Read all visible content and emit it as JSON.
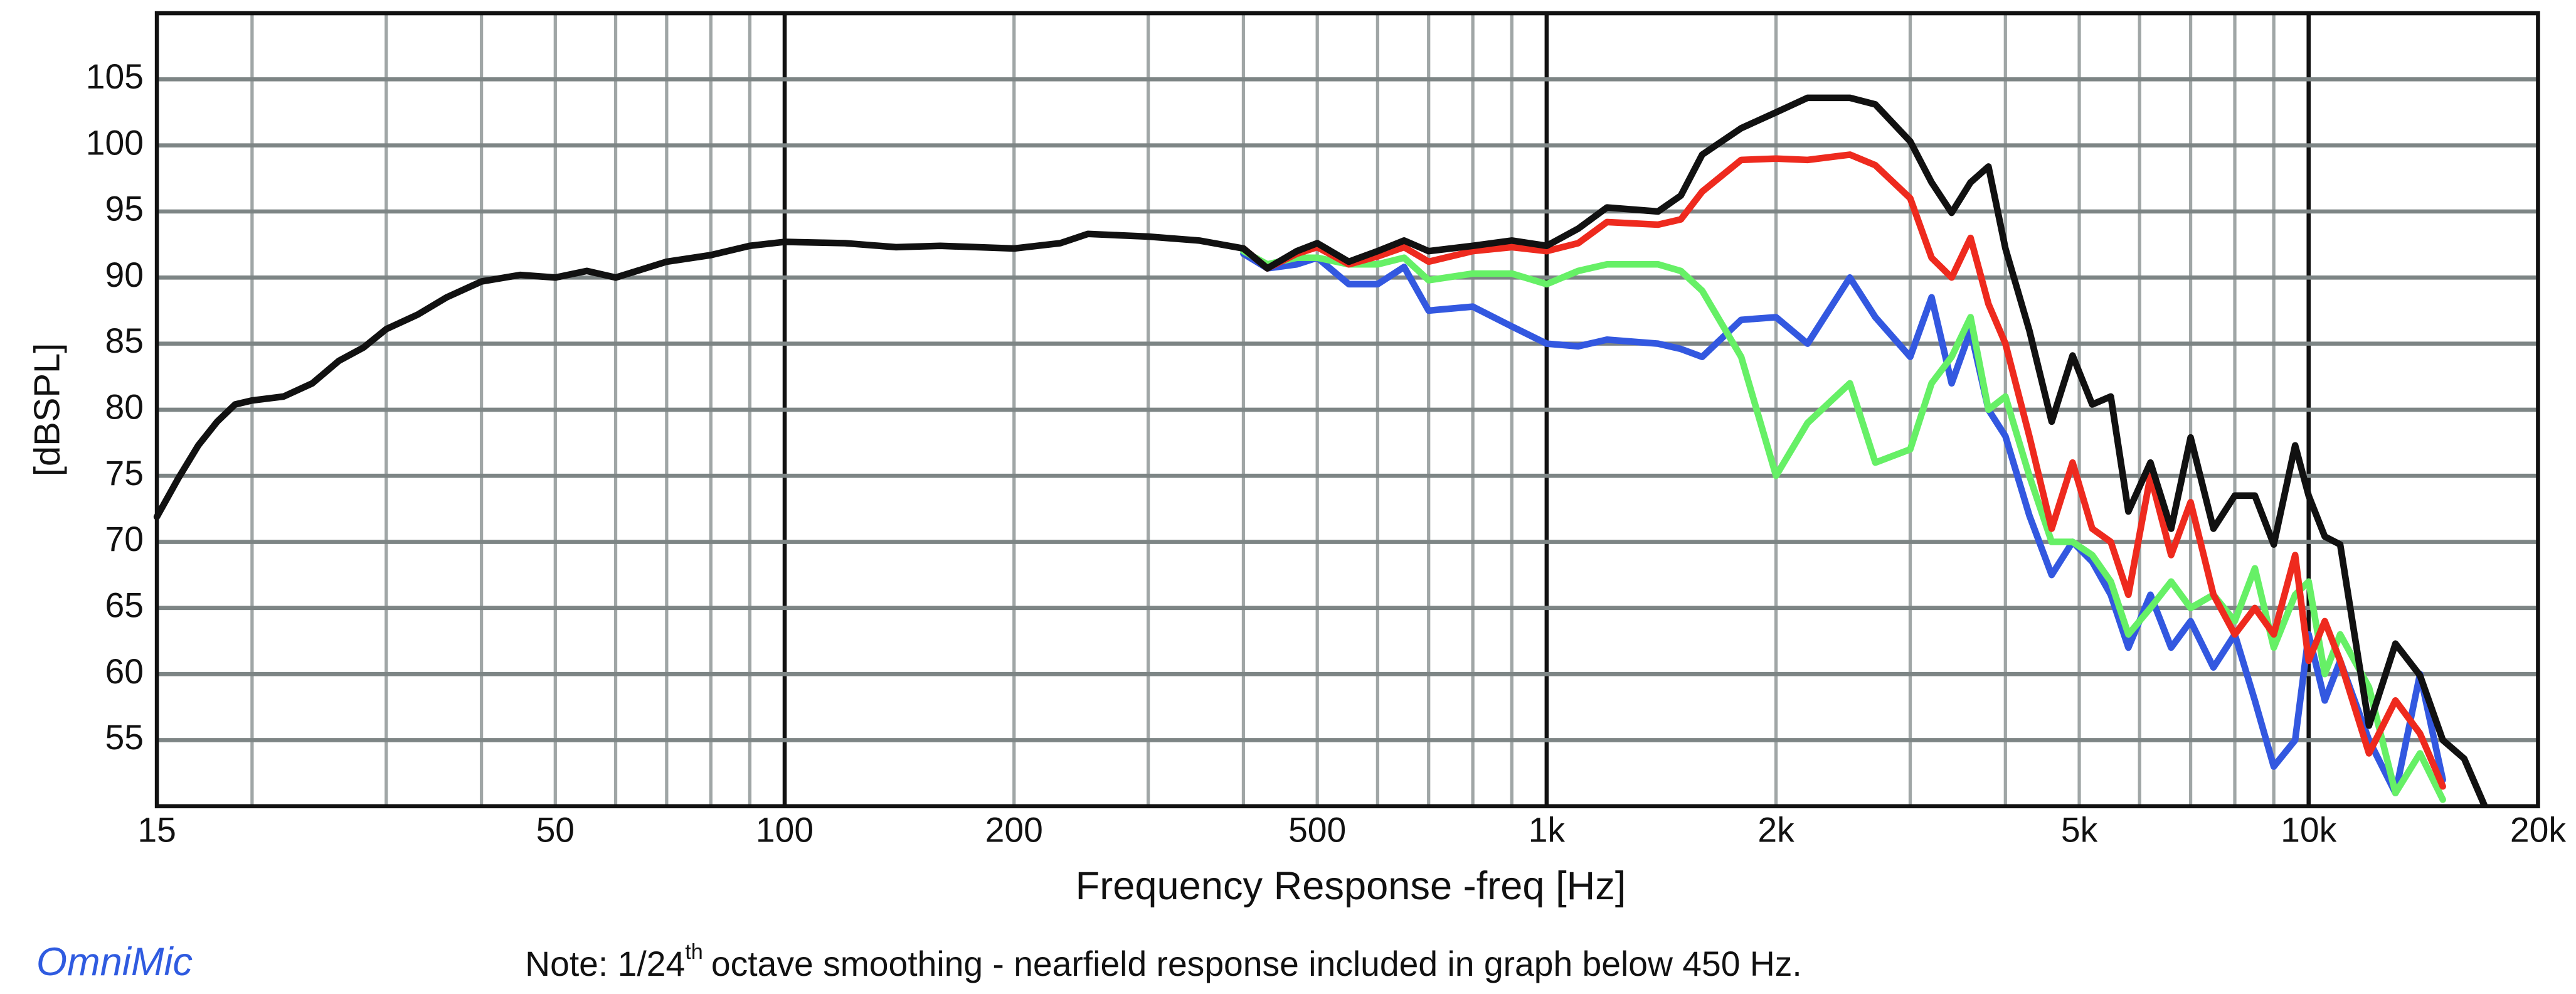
{
  "chart_data": {
    "type": "line",
    "y_label": "[dBSPL]",
    "x_label": "Frequency Response -freq [Hz]",
    "brand": "OmniMic",
    "note": {
      "before": "Note: 1/24",
      "sup": "th",
      "after": "octave smoothing - nearfield response included in graph below 450 Hz."
    },
    "xscale": "log",
    "grid": true,
    "xlim": [
      15,
      20000
    ],
    "ylim": [
      50,
      110
    ],
    "yticks": [
      55,
      60,
      65,
      70,
      75,
      80,
      85,
      90,
      95,
      100,
      105
    ],
    "xticks": [
      15,
      50,
      100,
      200,
      500,
      {
        "value": 1000,
        "label": "1k"
      },
      {
        "value": 2000,
        "label": "2k"
      },
      {
        "value": 5000,
        "label": "5k"
      },
      {
        "value": 10000,
        "label": "10k"
      },
      {
        "value": 20000,
        "label": "20k"
      }
    ],
    "xgrid": [
      20,
      30,
      40,
      50,
      60,
      70,
      80,
      90,
      100,
      200,
      300,
      400,
      500,
      600,
      700,
      800,
      900,
      1000,
      2000,
      3000,
      4000,
      5000,
      6000,
      7000,
      8000,
      9000,
      10000
    ],
    "x": [
      15,
      16,
      17,
      18,
      19,
      20,
      22,
      24,
      26,
      28,
      30,
      33,
      36,
      40,
      45,
      50,
      55,
      60,
      70,
      80,
      90,
      100,
      120,
      140,
      160,
      200,
      230,
      250,
      300,
      350,
      400,
      430,
      470,
      500,
      550,
      600,
      650,
      700,
      800,
      900,
      1000,
      1100,
      1200,
      1400,
      1500,
      1600,
      1800,
      2000,
      2200,
      2500,
      2700,
      3000,
      3200,
      3400,
      3600,
      3800,
      4000,
      4300,
      4600,
      4900,
      5200,
      5500,
      5800,
      6200,
      6600,
      7000,
      7500,
      8000,
      8500,
      9000,
      9600,
      10000,
      10500,
      11000,
      12000,
      13000,
      14000,
      15000,
      16000,
      17000
    ],
    "series": [
      {
        "color": "#3358e0",
        "values": [
          null,
          null,
          null,
          null,
          null,
          null,
          null,
          null,
          null,
          null,
          null,
          null,
          null,
          null,
          null,
          null,
          null,
          null,
          null,
          null,
          null,
          null,
          null,
          null,
          null,
          null,
          null,
          null,
          null,
          null,
          91.8,
          90.7,
          91,
          91.5,
          89.5,
          89.5,
          90.8,
          87.5,
          87.8,
          86.3,
          85,
          84.8,
          85.3,
          85,
          84.6,
          84,
          86.8,
          87,
          85,
          90,
          87,
          84,
          88.5,
          82,
          86,
          80,
          78,
          72,
          67.5,
          70,
          68.5,
          66,
          62,
          66,
          62,
          64,
          60.5,
          63,
          58,
          53,
          55,
          63,
          58,
          61,
          55,
          51,
          60,
          52,
          null,
          null
        ]
      },
      {
        "color": "#66f066",
        "values": [
          null,
          null,
          null,
          null,
          null,
          null,
          null,
          null,
          null,
          null,
          null,
          null,
          null,
          null,
          null,
          null,
          null,
          null,
          null,
          null,
          null,
          null,
          null,
          null,
          null,
          null,
          null,
          null,
          null,
          null,
          92,
          91,
          91.5,
          91.5,
          91,
          91,
          91.5,
          89.8,
          90.3,
          90.3,
          89.5,
          90.5,
          91,
          91,
          90.5,
          89,
          84,
          75,
          79,
          82,
          76,
          77,
          82,
          84,
          87,
          80,
          81,
          75,
          70,
          70,
          69,
          67,
          63,
          65,
          67,
          65,
          66,
          64,
          68,
          62,
          66,
          67,
          60,
          63,
          59,
          51,
          54,
          50.5,
          null,
          null
        ]
      },
      {
        "color": "#ee2a1e",
        "values": [
          null,
          null,
          null,
          null,
          null,
          null,
          null,
          null,
          null,
          null,
          null,
          null,
          null,
          null,
          null,
          null,
          null,
          null,
          null,
          null,
          null,
          null,
          null,
          null,
          null,
          null,
          null,
          null,
          null,
          null,
          92.2,
          90.7,
          91.8,
          92.3,
          91,
          91.6,
          92.3,
          91.2,
          92,
          92.3,
          92,
          92.6,
          94.2,
          94,
          94.4,
          96.5,
          98.9,
          99,
          98.9,
          99.3,
          98.5,
          96,
          91.5,
          90,
          93,
          88,
          85,
          78,
          71,
          76,
          71,
          70,
          66,
          75,
          69,
          73,
          66,
          63,
          65,
          63,
          69,
          61,
          64,
          61,
          54,
          58,
          55.5,
          51.5,
          null,
          null
        ]
      },
      {
        "color": "#111111",
        "values": [
          71.9,
          74.8,
          77.3,
          79.1,
          80.4,
          80.7,
          81,
          82,
          83.7,
          84.7,
          86.1,
          87.2,
          88.5,
          89.7,
          90.2,
          90,
          90.5,
          90,
          91.2,
          91.7,
          92.4,
          92.7,
          92.6,
          92.3,
          92.4,
          92.2,
          92.6,
          93.3,
          93.1,
          92.8,
          92.2,
          90.7,
          92,
          92.6,
          91.2,
          92,
          92.8,
          92,
          92.4,
          92.8,
          92.4,
          93.7,
          95.3,
          95,
          96.2,
          99.3,
          101.3,
          102.5,
          103.6,
          103.6,
          103.1,
          100.3,
          97.2,
          94.9,
          97.2,
          98.4,
          92.2,
          86,
          79.1,
          84.1,
          80.4,
          81,
          72.3,
          76,
          71,
          77.9,
          71,
          73.5,
          73.5,
          69.8,
          77.3,
          73.5,
          70.4,
          69.8,
          56.1,
          62.3,
          59.9,
          55,
          53.6,
          50.1
        ]
      }
    ]
  }
}
